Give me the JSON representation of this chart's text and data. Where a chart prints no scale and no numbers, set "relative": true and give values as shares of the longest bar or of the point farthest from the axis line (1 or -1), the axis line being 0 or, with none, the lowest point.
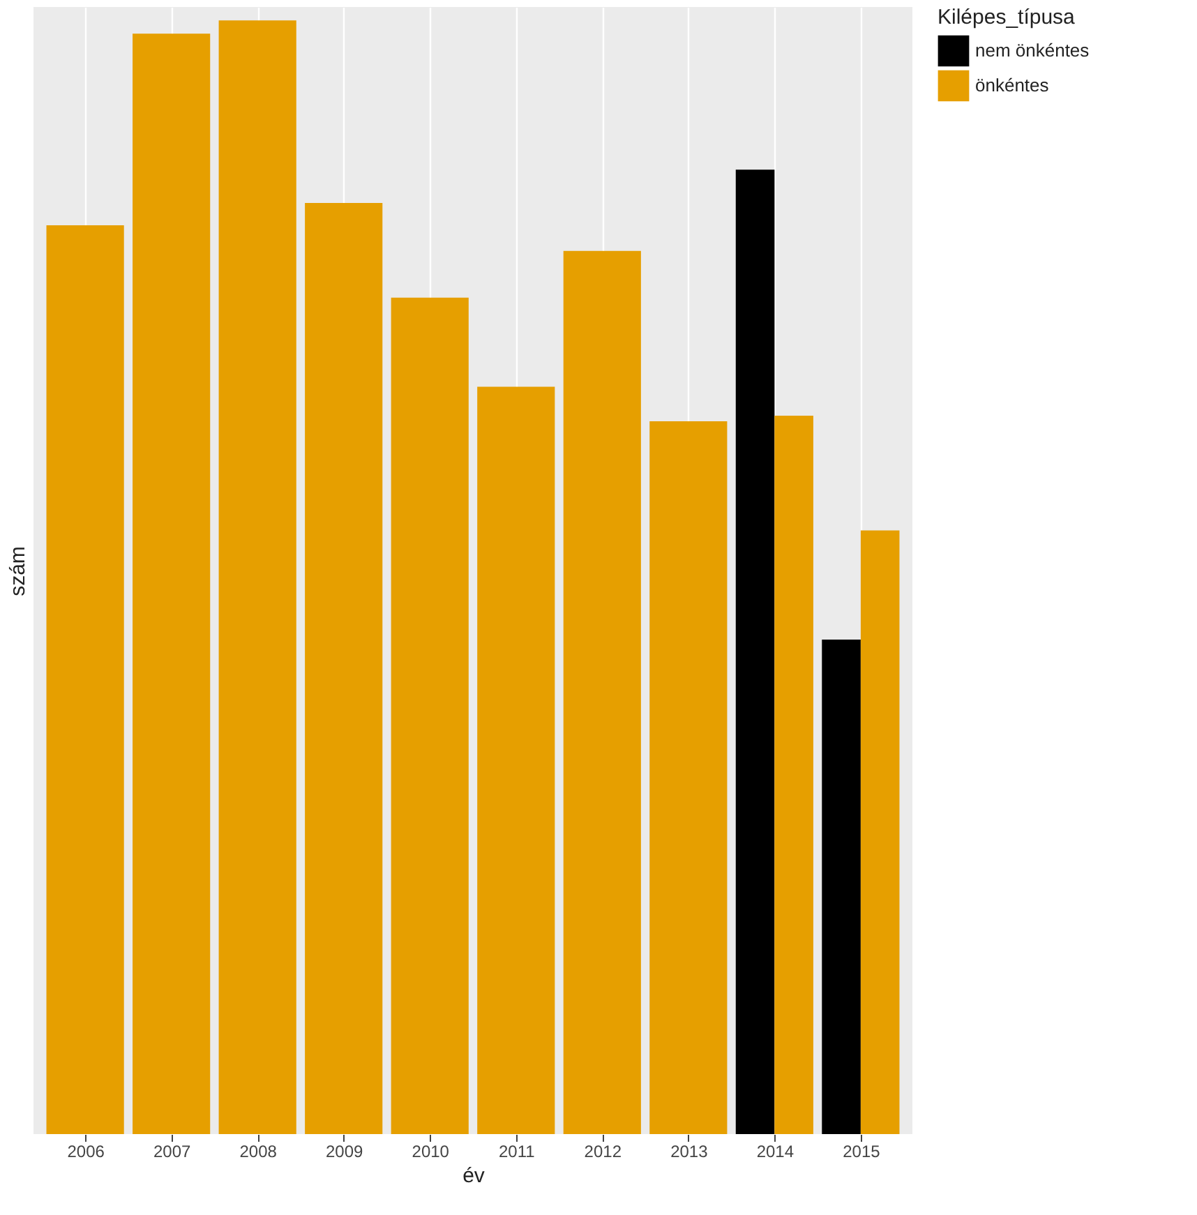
{
  "chart_data": {
    "type": "bar",
    "relative": true,
    "xlabel": "év",
    "ylabel": "szám",
    "legend_title": "Kilépes_típusa",
    "legend": "right",
    "grid": "x",
    "categories": [
      "2006",
      "2007",
      "2008",
      "2009",
      "2010",
      "2011",
      "2012",
      "2013",
      "2014",
      "2015"
    ],
    "series": [
      {
        "name": "nem önkéntes",
        "color": "#000000",
        "values": [
          null,
          null,
          null,
          null,
          null,
          null,
          null,
          null,
          0.866,
          0.444
        ]
      },
      {
        "name": "önkéntes",
        "color": "#e69f00",
        "values": [
          0.816,
          0.988,
          1,
          0.836,
          0.751,
          0.671,
          0.793,
          0.64,
          0.645,
          0.542
        ]
      }
    ]
  }
}
